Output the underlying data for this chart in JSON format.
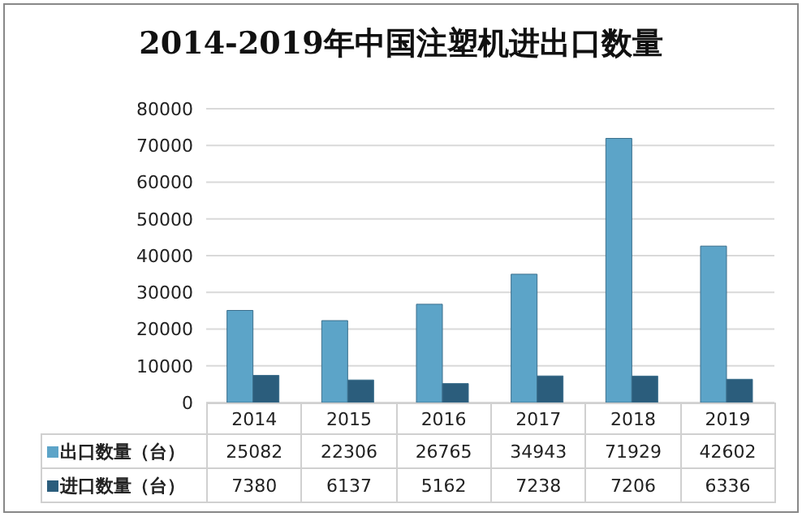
{
  "chart_data": {
    "type": "bar",
    "title": "2014-2019年中国注塑机进出口数量",
    "categories": [
      "2014",
      "2015",
      "2016",
      "2017",
      "2018",
      "2019"
    ],
    "series": [
      {
        "name": "出口数量（台）",
        "color": "#5ca4c8",
        "values": [
          25082,
          22306,
          26765,
          34943,
          71929,
          42602
        ]
      },
      {
        "name": "进口数量（台）",
        "color": "#2b5d7c",
        "values": [
          7380,
          6137,
          5162,
          7238,
          7206,
          6336
        ]
      }
    ],
    "ylim": [
      0,
      80000
    ],
    "yticks": [
      0,
      10000,
      20000,
      30000,
      40000,
      50000,
      60000,
      70000,
      80000
    ],
    "grid": "y",
    "legend": "bottom",
    "data_labels": true
  }
}
